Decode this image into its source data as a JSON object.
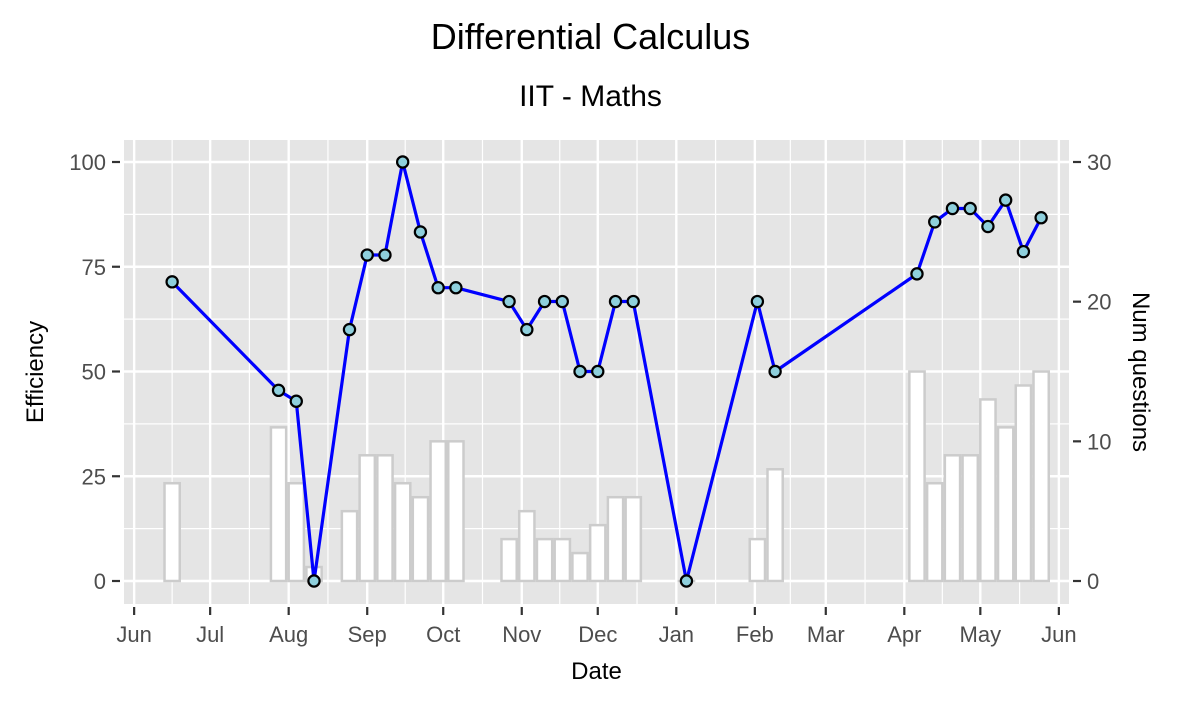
{
  "chart_data": {
    "type": "line",
    "title": "Differential Calculus",
    "subtitle": "IIT - Maths",
    "xlabel": "Date",
    "ylabel": "Efficiency",
    "y2label": "Num questions",
    "ylim": [
      0,
      100
    ],
    "y2lim": [
      0,
      30
    ],
    "xlim": [
      "2018-05-28",
      "2019-06-05"
    ],
    "grid": true,
    "x_ticks": [
      {
        "date": "2018-06-01",
        "label": "Jun"
      },
      {
        "date": "2018-07-01",
        "label": "Jul"
      },
      {
        "date": "2018-08-01",
        "label": "Aug"
      },
      {
        "date": "2018-09-01",
        "label": "Sep"
      },
      {
        "date": "2018-10-01",
        "label": "Oct"
      },
      {
        "date": "2018-11-01",
        "label": "Nov"
      },
      {
        "date": "2018-12-01",
        "label": "Dec"
      },
      {
        "date": "2019-01-01",
        "label": "Jan"
      },
      {
        "date": "2019-02-01",
        "label": "Feb"
      },
      {
        "date": "2019-03-01",
        "label": "Mar"
      },
      {
        "date": "2019-04-01",
        "label": "Apr"
      },
      {
        "date": "2019-05-01",
        "label": "May"
      },
      {
        "date": "2019-06-01",
        "label": "Jun"
      }
    ],
    "y_ticks": [
      "0",
      "25",
      "50",
      "75",
      "100"
    ],
    "y2_ticks": [
      "0",
      "10",
      "20",
      "30"
    ],
    "colors": {
      "line": "#0000ff",
      "point_fill": "#8ecfdc",
      "point_stroke": "#000000",
      "bar_fill": "#ffffff",
      "bar_stroke": "#cccccc",
      "panel": "#e5e5e5",
      "grid": "#ffffff"
    },
    "series": [
      {
        "type": "line",
        "axis": "left",
        "points": [
          {
            "x": "2018-06-16",
            "y": 71.4
          },
          {
            "x": "2018-07-28",
            "y": 45.5
          },
          {
            "x": "2018-08-04",
            "y": 42.9
          },
          {
            "x": "2018-08-11",
            "y": 0
          },
          {
            "x": "2018-08-25",
            "y": 60
          },
          {
            "x": "2018-09-01",
            "y": 77.8
          },
          {
            "x": "2018-09-08",
            "y": 77.8
          },
          {
            "x": "2018-09-15",
            "y": 100
          },
          {
            "x": "2018-09-22",
            "y": 83.3
          },
          {
            "x": "2018-09-29",
            "y": 70
          },
          {
            "x": "2018-10-06",
            "y": 70
          },
          {
            "x": "2018-10-27",
            "y": 66.7
          },
          {
            "x": "2018-11-03",
            "y": 60
          },
          {
            "x": "2018-11-10",
            "y": 66.7
          },
          {
            "x": "2018-11-17",
            "y": 66.7
          },
          {
            "x": "2018-11-24",
            "y": 50
          },
          {
            "x": "2018-12-01",
            "y": 50
          },
          {
            "x": "2018-12-08",
            "y": 66.7
          },
          {
            "x": "2018-12-15",
            "y": 66.7
          },
          {
            "x": "2019-01-05",
            "y": 0
          },
          {
            "x": "2019-02-02",
            "y": 66.7
          },
          {
            "x": "2019-02-09",
            "y": 50
          },
          {
            "x": "2019-04-06",
            "y": 73.3
          },
          {
            "x": "2019-04-13",
            "y": 85.7
          },
          {
            "x": "2019-04-20",
            "y": 88.9
          },
          {
            "x": "2019-04-27",
            "y": 88.9
          },
          {
            "x": "2019-05-04",
            "y": 84.6
          },
          {
            "x": "2019-05-11",
            "y": 90.9
          },
          {
            "x": "2019-05-18",
            "y": 78.6
          },
          {
            "x": "2019-05-25",
            "y": 86.7
          }
        ]
      },
      {
        "type": "bar",
        "axis": "right",
        "points": [
          {
            "x": "2018-06-16",
            "y": 7
          },
          {
            "x": "2018-07-28",
            "y": 11
          },
          {
            "x": "2018-08-04",
            "y": 7
          },
          {
            "x": "2018-08-11",
            "y": 1
          },
          {
            "x": "2018-08-25",
            "y": 5
          },
          {
            "x": "2018-09-01",
            "y": 9
          },
          {
            "x": "2018-09-08",
            "y": 9
          },
          {
            "x": "2018-09-15",
            "y": 7
          },
          {
            "x": "2018-09-22",
            "y": 6
          },
          {
            "x": "2018-09-29",
            "y": 10
          },
          {
            "x": "2018-10-06",
            "y": 10
          },
          {
            "x": "2018-10-27",
            "y": 3
          },
          {
            "x": "2018-11-03",
            "y": 5
          },
          {
            "x": "2018-11-10",
            "y": 3
          },
          {
            "x": "2018-11-17",
            "y": 3
          },
          {
            "x": "2018-11-24",
            "y": 2
          },
          {
            "x": "2018-12-01",
            "y": 4
          },
          {
            "x": "2018-12-08",
            "y": 6
          },
          {
            "x": "2018-12-15",
            "y": 6
          },
          {
            "x": "2019-01-05",
            "y": 0
          },
          {
            "x": "2019-02-02",
            "y": 3
          },
          {
            "x": "2019-02-09",
            "y": 8
          },
          {
            "x": "2019-04-06",
            "y": 15
          },
          {
            "x": "2019-04-13",
            "y": 7
          },
          {
            "x": "2019-04-20",
            "y": 9
          },
          {
            "x": "2019-04-27",
            "y": 9
          },
          {
            "x": "2019-05-04",
            "y": 13
          },
          {
            "x": "2019-05-11",
            "y": 11
          },
          {
            "x": "2019-05-18",
            "y": 14
          },
          {
            "x": "2019-05-25",
            "y": 15
          }
        ]
      }
    ]
  }
}
